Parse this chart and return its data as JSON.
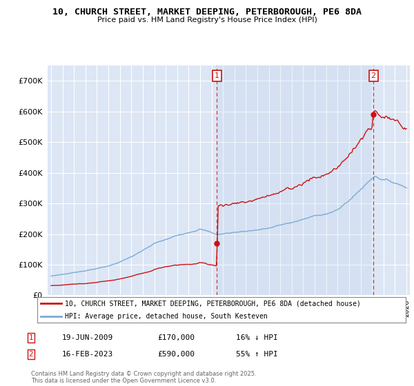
{
  "title": "10, CHURCH STREET, MARKET DEEPING, PETERBOROUGH, PE6 8DA",
  "subtitle": "Price paid vs. HM Land Registry's House Price Index (HPI)",
  "background_color": "#ffffff",
  "plot_bg_color": "#dce6f5",
  "plot_bg_color2": "#e8f0fa",
  "grid_color": "#ffffff",
  "hpi_color": "#7baad4",
  "price_color": "#cc1111",
  "ylim": [
    0,
    750000
  ],
  "yticks": [
    0,
    100000,
    200000,
    300000,
    400000,
    500000,
    600000,
    700000
  ],
  "year_start": 1995,
  "year_end": 2026,
  "sale1_year": 2009.47,
  "sale1_price": 170000,
  "sale2_year": 2023.12,
  "sale2_price": 590000,
  "legend_line1": "10, CHURCH STREET, MARKET DEEPING, PETERBOROUGH, PE6 8DA (detached house)",
  "legend_line2": "HPI: Average price, detached house, South Kesteven",
  "annotation1_date": "19-JUN-2009",
  "annotation1_price": "£170,000",
  "annotation1_hpi": "16% ↓ HPI",
  "annotation2_date": "16-FEB-2023",
  "annotation2_price": "£590,000",
  "annotation2_hpi": "55% ↑ HPI",
  "footer": "Contains HM Land Registry data © Crown copyright and database right 2025.\nThis data is licensed under the Open Government Licence v3.0."
}
